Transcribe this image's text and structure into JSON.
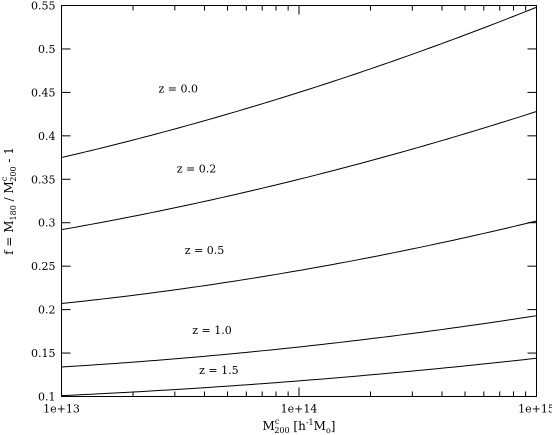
{
  "chart_data": {
    "type": "line",
    "xscale": "log",
    "xlim": [
      10000000000000.0,
      1000000000000000.0
    ],
    "ylim": [
      0.1,
      0.55
    ],
    "x_ticks": [
      10000000000000.0,
      100000000000000.0,
      1000000000000000.0
    ],
    "x_tick_labels": [
      "1e+13",
      "1e+14",
      "1e+15"
    ],
    "y_ticks": [
      0.1,
      0.15,
      0.2,
      0.25,
      0.3,
      0.35,
      0.4,
      0.45,
      0.5,
      0.55
    ],
    "y_tick_labels": [
      "0.1",
      "0.15",
      "0.2",
      "0.25",
      "0.3",
      "0.35",
      "0.4",
      "0.45",
      "0.5",
      "0.55"
    ],
    "minor_x_ticks": true,
    "grid": false,
    "legend": "none",
    "xlabel": {
      "main": "M",
      "sup": "c",
      "sub": "200",
      "units_open": " [h",
      "units_sup": "-1",
      "units_mid": "M",
      "units_sub": "o",
      "units_close": "]"
    },
    "ylabel": {
      "prefix": "f = M",
      "sub1": "180",
      "mid": " / M",
      "sup2": "c",
      "sub2": "200",
      "suffix": " - 1"
    },
    "series": [
      {
        "name": "z = 0.0",
        "x": [
          10000000000000.0,
          100000000000000.0,
          1000000000000000.0
        ],
        "y": [
          0.375,
          0.45,
          0.548
        ]
      },
      {
        "name": "z = 0.2",
        "x": [
          10000000000000.0,
          100000000000000.0,
          1000000000000000.0
        ],
        "y": [
          0.292,
          0.35,
          0.428
        ]
      },
      {
        "name": "z = 0.5",
        "x": [
          10000000000000.0,
          100000000000000.0,
          1000000000000000.0
        ],
        "y": [
          0.207,
          0.245,
          0.302
        ]
      },
      {
        "name": "z = 1.0",
        "x": [
          10000000000000.0,
          100000000000000.0,
          1000000000000000.0
        ],
        "y": [
          0.134,
          0.157,
          0.193
        ]
      },
      {
        "name": "z = 1.5",
        "x": [
          10000000000000.0,
          100000000000000.0,
          1000000000000000.0
        ],
        "y": [
          0.101,
          0.118,
          0.144
        ]
      }
    ],
    "curve_labels": [
      {
        "text": "z = 0.0",
        "x": 31000000000000.0,
        "y": 0.45
      },
      {
        "text": "z = 0.2",
        "x": 37000000000000.0,
        "y": 0.358
      },
      {
        "text": "z = 0.5",
        "x": 40000000000000.0,
        "y": 0.264
      },
      {
        "text": "z = 1.0",
        "x": 43000000000000.0,
        "y": 0.172
      },
      {
        "text": "z = 1.5",
        "x": 46000000000000.0,
        "y": 0.126
      }
    ]
  }
}
